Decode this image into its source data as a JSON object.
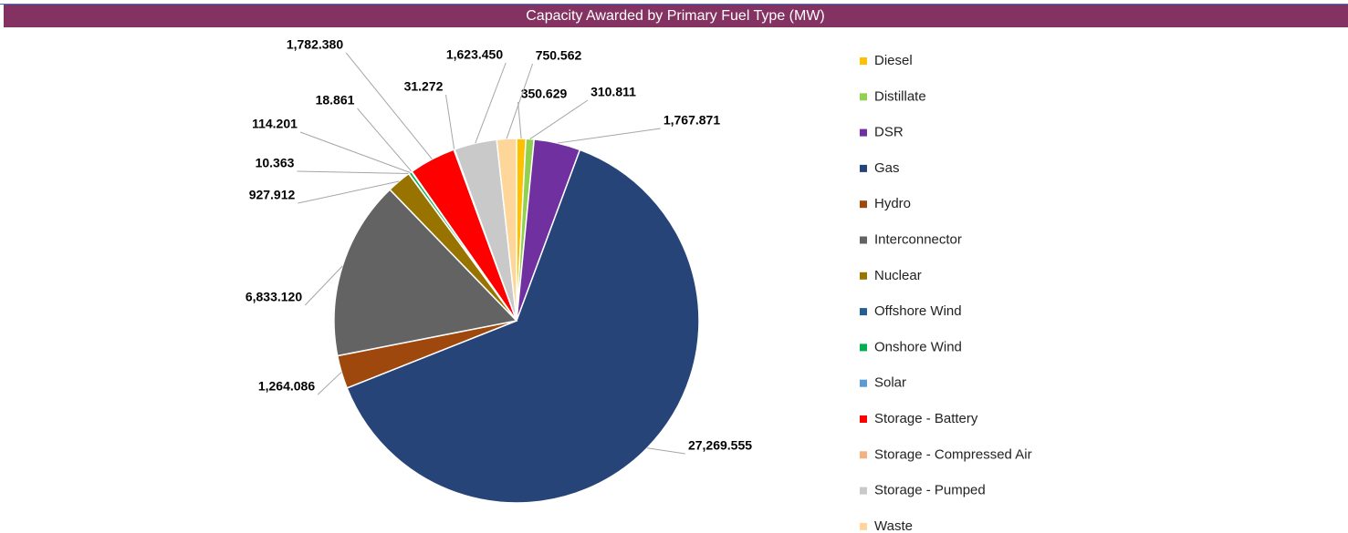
{
  "chart_data": {
    "type": "pie",
    "title": "Capacity Awarded by Primary Fuel Type (MW)",
    "categories": [
      "Diesel",
      "Distillate",
      "DSR",
      "Gas",
      "Hydro",
      "Interconnector",
      "Nuclear",
      "Offshore Wind",
      "Onshore Wind",
      "Solar",
      "Storage - Battery",
      "Storage - Compressed Air",
      "Storage - Pumped",
      "Waste"
    ],
    "values": [
      350.629,
      310.811,
      1767.871,
      27269.555,
      1264.086,
      6833.12,
      927.912,
      10.363,
      114.201,
      18.861,
      1782.38,
      31.272,
      1623.45,
      750.562
    ],
    "value_labels": [
      "350.629",
      "310.811",
      "1,767.871",
      "27,269.555",
      "1,264.086",
      "6,833.120",
      "927.912",
      "10.363",
      "114.201",
      "18.861",
      "1,782.380",
      "31.272",
      "1,623.450",
      "750.562"
    ],
    "colors": [
      "#ffc000",
      "#92d050",
      "#7030a0",
      "#264478",
      "#9e480e",
      "#636363",
      "#997300",
      "#255e91",
      "#00b050",
      "#5b9bd5",
      "#ff0000",
      "#f4b183",
      "#c9c9c9",
      "#ffd699"
    ],
    "legend": "right"
  }
}
